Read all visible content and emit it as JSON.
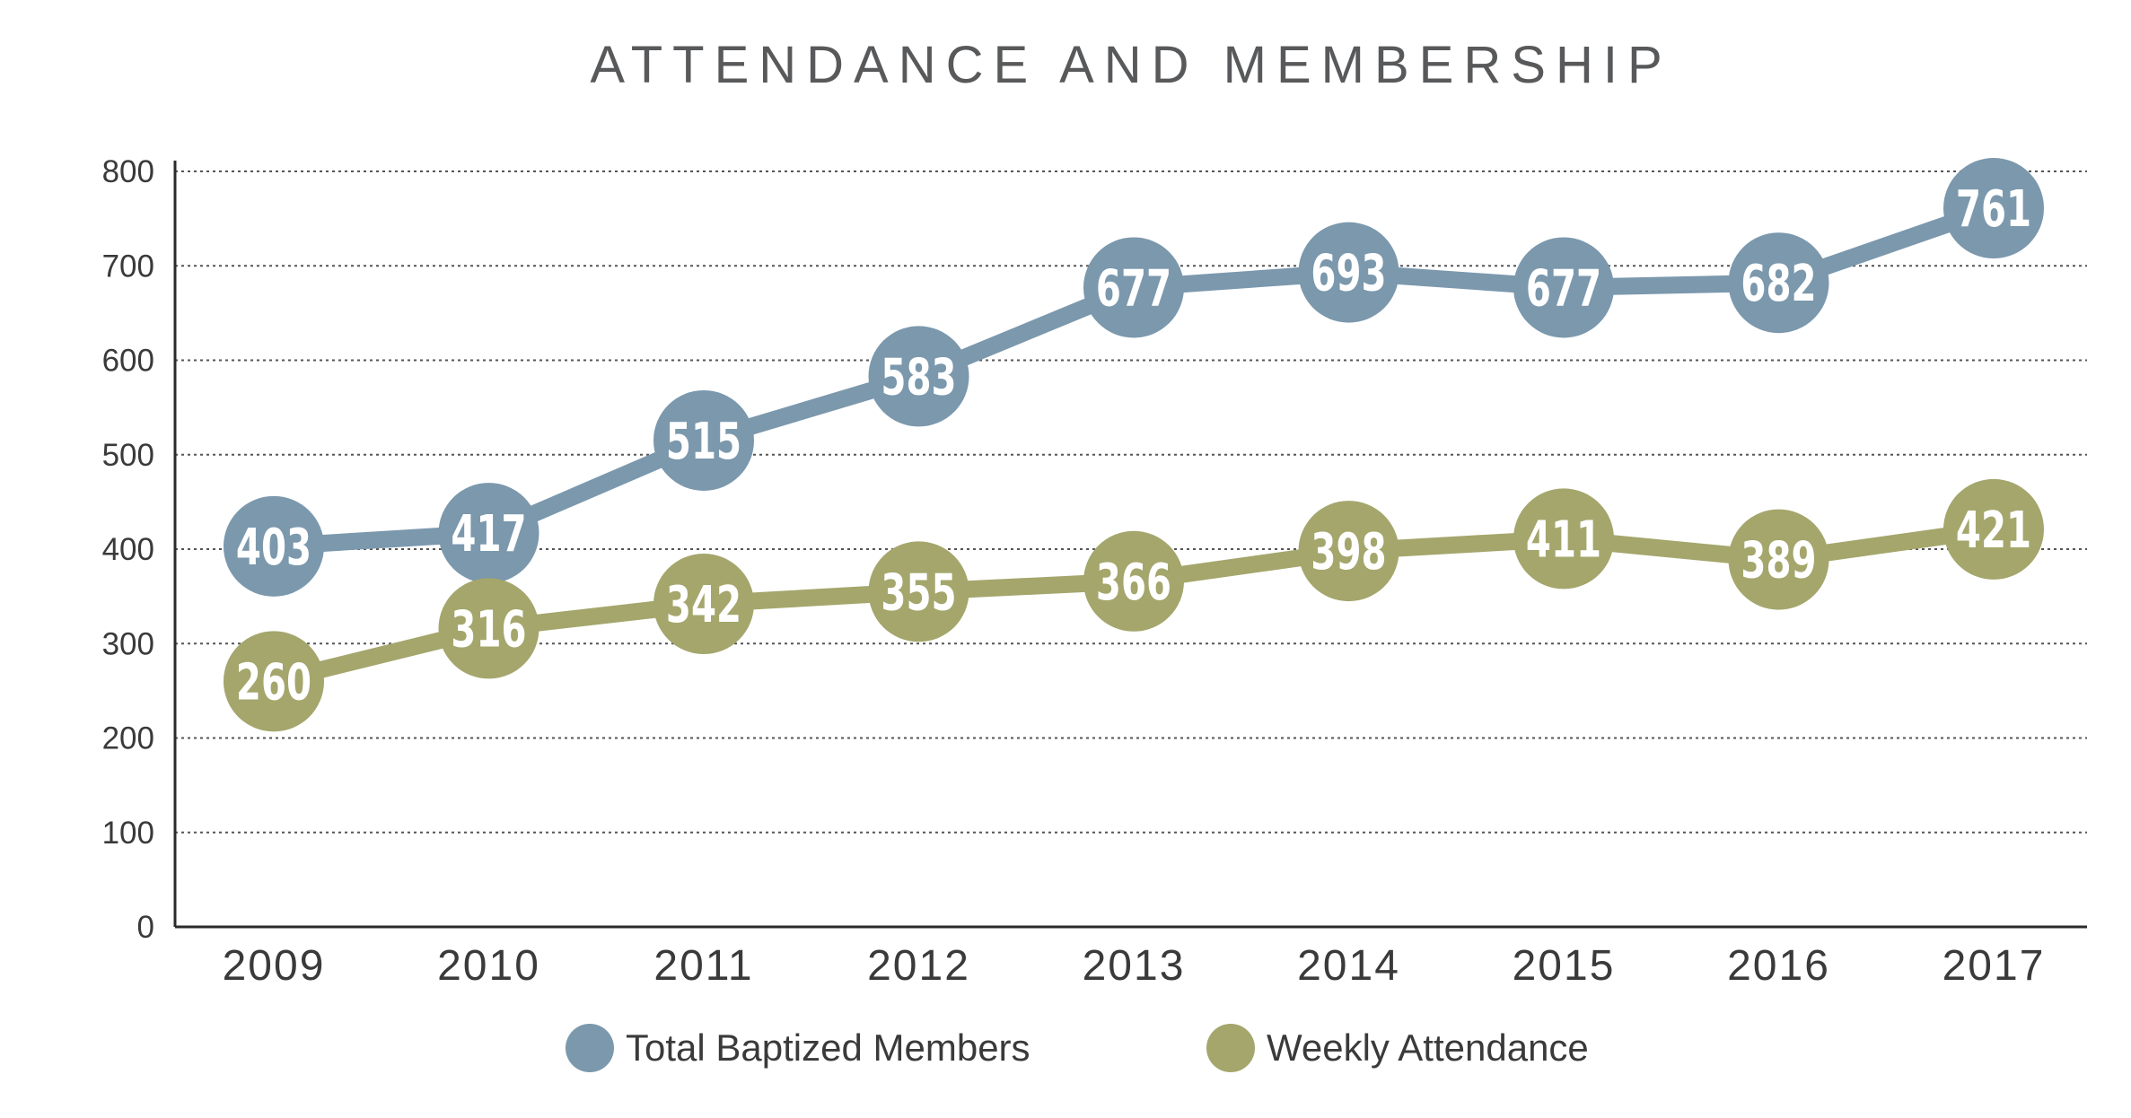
{
  "chart_data": {
    "type": "line",
    "title": "ATTENDANCE AND MEMBERSHIP",
    "xlabel": "",
    "ylabel": "",
    "categories": [
      "2009",
      "2010",
      "2011",
      "2012",
      "2013",
      "2014",
      "2015",
      "2016",
      "2017"
    ],
    "ylim": [
      0,
      800
    ],
    "yticks": [
      "0",
      "100",
      "200",
      "300",
      "400",
      "500",
      "600",
      "700",
      "800"
    ],
    "grid": true,
    "legend_position": "bottom",
    "series": [
      {
        "name": "Total Baptized Members",
        "color": "#7b98ad",
        "values": [
          403,
          417,
          515,
          583,
          677,
          693,
          677,
          682,
          761
        ]
      },
      {
        "name": "Weekly Attendance",
        "color": "#a4a66c",
        "values": [
          260,
          316,
          342,
          355,
          366,
          398,
          411,
          389,
          421
        ]
      }
    ]
  }
}
